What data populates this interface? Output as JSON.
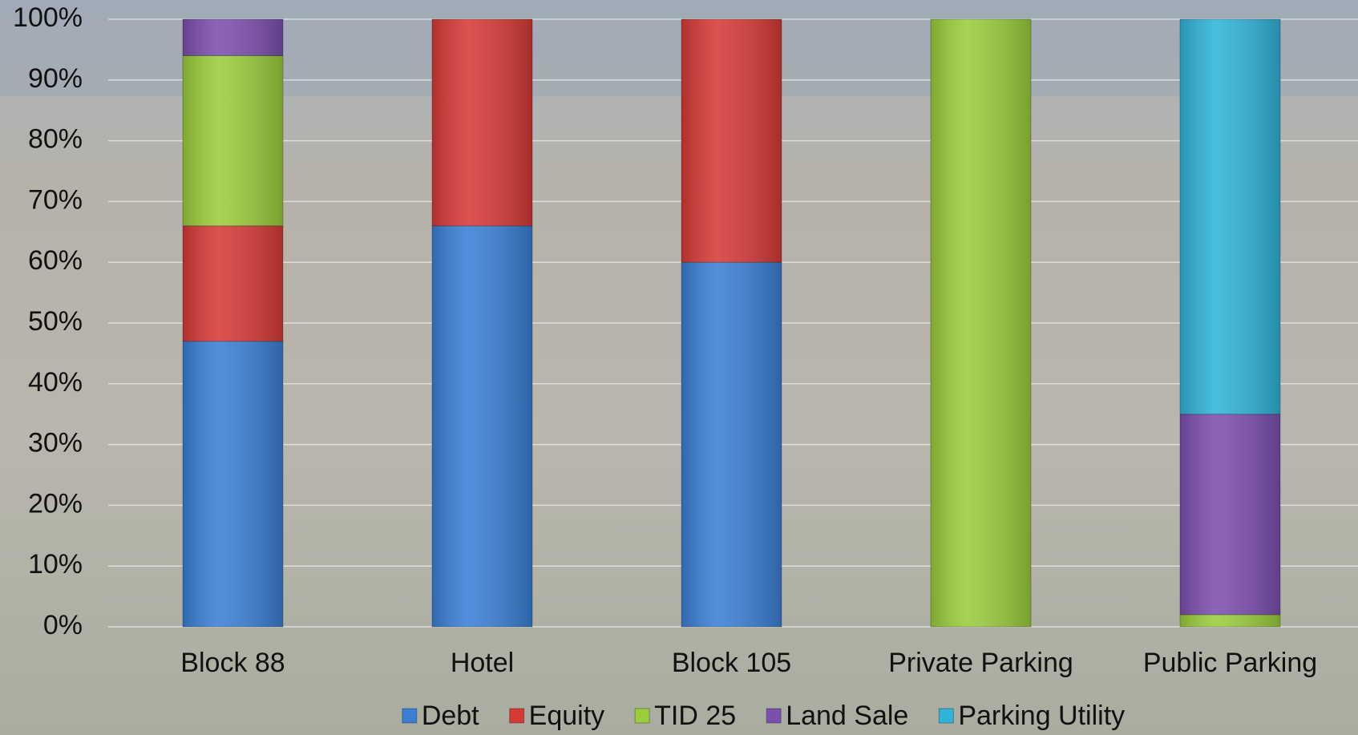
{
  "chart_data": {
    "type": "stacked_bar",
    "categories": [
      "Block 88",
      "Hotel",
      "Block 105",
      "Private Parking",
      "Public Parking"
    ],
    "series": [
      {
        "name": "Debt",
        "color": "#3a7fd5",
        "values": [
          47,
          66,
          60,
          null,
          null
        ]
      },
      {
        "name": "Equity",
        "color": "#d63a36",
        "values": [
          19,
          34,
          40,
          null,
          null
        ]
      },
      {
        "name": "TID 25",
        "color": "#9ccc3c",
        "values": [
          28,
          null,
          null,
          100,
          2
        ]
      },
      {
        "name": "Land Sale",
        "color": "#7b4fae",
        "values": [
          6,
          null,
          null,
          null,
          33
        ]
      },
      {
        "name": "Parking Utility",
        "color": "#2fb4d8",
        "values": [
          null,
          null,
          null,
          null,
          65
        ]
      }
    ],
    "ylim": [
      0,
      100
    ],
    "yticks": [
      {
        "value": 0,
        "label": "0%"
      },
      {
        "value": 10,
        "label": "10%"
      },
      {
        "value": 20,
        "label": "20%"
      },
      {
        "value": 30,
        "label": "30%"
      },
      {
        "value": 40,
        "label": "40%"
      },
      {
        "value": 50,
        "label": "50%"
      },
      {
        "value": 60,
        "label": "60%"
      },
      {
        "value": 70,
        "label": "70%"
      },
      {
        "value": 80,
        "label": "80%"
      },
      {
        "value": 90,
        "label": "90%"
      },
      {
        "value": 100,
        "label": "100%"
      }
    ],
    "grid": true,
    "legend": "bottom"
  }
}
